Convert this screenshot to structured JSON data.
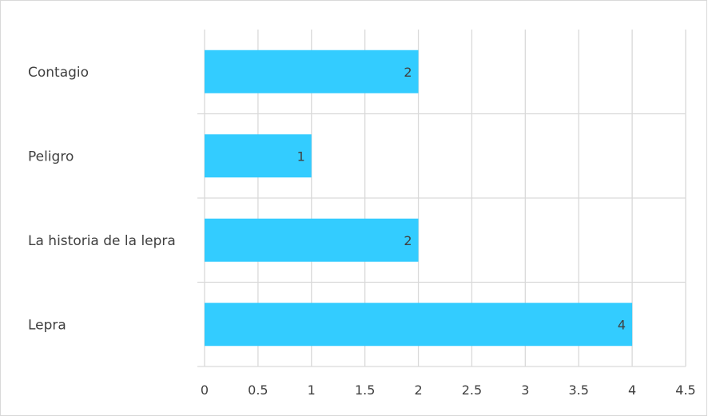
{
  "chart_data": {
    "type": "bar",
    "orientation": "horizontal",
    "categories": [
      "Contagio",
      "Peligro",
      "La historia de la lepra",
      "Lepra"
    ],
    "values": [
      2,
      1,
      2,
      4
    ],
    "x_ticks": [
      "0",
      "0.5",
      "1",
      "1.5",
      "2",
      "2.5",
      "3",
      "3.5",
      "4",
      "4.5"
    ],
    "xlim": [
      0,
      4.5
    ],
    "data_labels": [
      "2",
      "1",
      "2",
      "4"
    ],
    "grid": true,
    "legend": "none",
    "bar_color": "#33CCFF",
    "grid_color": "#D9D9D9",
    "text_color": "#404040"
  }
}
